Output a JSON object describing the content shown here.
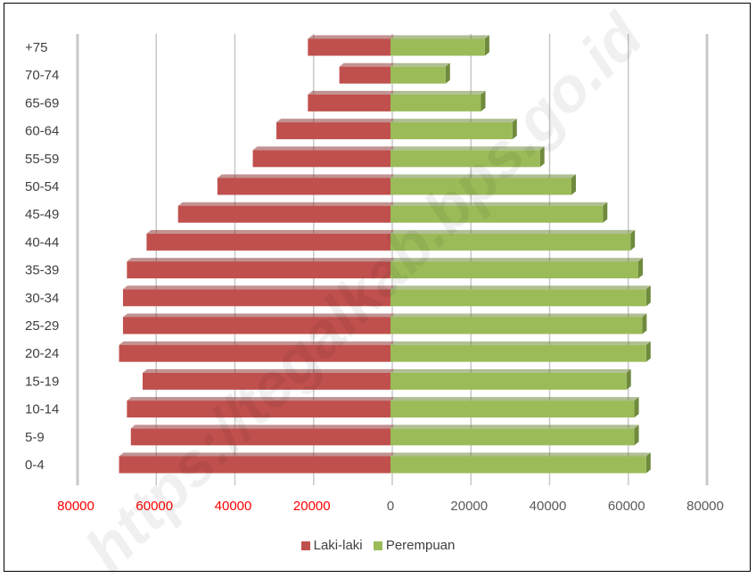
{
  "chart_data": {
    "type": "bar",
    "orientation": "horizontal",
    "subtype": "population-pyramid",
    "categories": [
      "0-4",
      "5-9",
      "10-14",
      "15-19",
      "20-24",
      "25-29",
      "30-34",
      "35-39",
      "40-44",
      "45-49",
      "50-54",
      "55-59",
      "60-64",
      "65-69",
      "70-74",
      "+75"
    ],
    "series": [
      {
        "name": "Laki-laki",
        "color": "#c0504d",
        "side": "left",
        "values": [
          69000,
          66000,
          67000,
          63000,
          69000,
          68000,
          68000,
          67000,
          62000,
          54000,
          44000,
          35000,
          29000,
          21000,
          13000,
          21000
        ]
      },
      {
        "name": "Perempuan",
        "color": "#9bbb59",
        "side": "right",
        "values": [
          65000,
          62000,
          62000,
          60000,
          65000,
          64000,
          65000,
          63000,
          61000,
          54000,
          46000,
          38000,
          31000,
          23000,
          14000,
          24000
        ]
      }
    ],
    "x_ticks": [
      "80000",
      "60000",
      "40000",
      "20000",
      "0",
      "20000",
      "40000",
      "60000",
      "80000"
    ],
    "xlim": [
      -80000,
      80000
    ],
    "left_tick_color": "#ff0000",
    "right_tick_color": "#595959",
    "grid": true,
    "legend_position": "bottom"
  },
  "watermark": "https://tegalkab.bps.go.id"
}
